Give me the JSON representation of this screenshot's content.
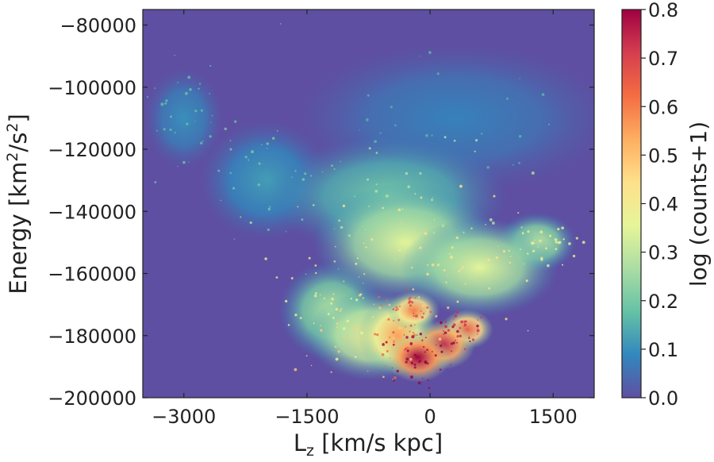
{
  "chart_data": {
    "type": "heatmap",
    "title": "",
    "xlabel_main": "L",
    "xlabel_sub": "z",
    "xlabel_rest": " [km/s kpc]",
    "ylabel_main": "Energy [km",
    "ylabel_sup": "2",
    "ylabel_mid": "/s",
    "ylabel_sup2": "2",
    "ylabel_end": "]",
    "xlim": [
      -3500,
      2000
    ],
    "ylim": [
      -200000,
      -75000
    ],
    "xticks": [
      -3000,
      -1500,
      0,
      1500
    ],
    "xtick_labels": [
      "−3000",
      "−1500",
      "0",
      "1500"
    ],
    "yticks": [
      -80000,
      -100000,
      -120000,
      -140000,
      -160000,
      -180000,
      -200000
    ],
    "ytick_labels": [
      "−80000",
      "−100000",
      "−120000",
      "−140000",
      "−160000",
      "−180000",
      "−200000"
    ],
    "colorbar": {
      "label": "log (counts+1)",
      "range": [
        0.0,
        0.8
      ],
      "ticks": [
        0.0,
        0.1,
        0.2,
        0.3,
        0.4,
        0.5,
        0.6,
        0.7,
        0.8
      ],
      "tick_labels": [
        "0.0",
        "0.1",
        "0.2",
        "0.3",
        "0.4",
        "0.5",
        "0.6",
        "0.7",
        "0.8"
      ],
      "colormap": "Spectral_r",
      "colors": [
        "#5e4fa2",
        "#3288bd",
        "#66c2a5",
        "#abdda4",
        "#e6f598",
        "#fee08b",
        "#fdae61",
        "#f46d43",
        "#d53e4f",
        "#9e0142"
      ]
    },
    "background_color": "#5e4fa2",
    "density_regions": [
      {
        "lz": -150,
        "energy": -187000,
        "level": 0.8,
        "spread_lz": 250,
        "spread_e": 5000
      },
      {
        "lz": 150,
        "energy": -183000,
        "level": 0.75,
        "spread_lz": 250,
        "spread_e": 5000
      },
      {
        "lz": 450,
        "energy": -178000,
        "level": 0.65,
        "spread_lz": 200,
        "spread_e": 4000
      },
      {
        "lz": -400,
        "energy": -180000,
        "level": 0.55,
        "spread_lz": 300,
        "spread_e": 8000
      },
      {
        "lz": -200,
        "energy": -172000,
        "level": 0.6,
        "spread_lz": 200,
        "spread_e": 4000
      },
      {
        "lz": -700,
        "energy": -180000,
        "level": 0.4,
        "spread_lz": 500,
        "spread_e": 9000
      },
      {
        "lz": -300,
        "energy": -150000,
        "level": 0.35,
        "spread_lz": 700,
        "spread_e": 12000
      },
      {
        "lz": 600,
        "energy": -158000,
        "level": 0.35,
        "spread_lz": 600,
        "spread_e": 10000
      },
      {
        "lz": 1300,
        "energy": -150000,
        "level": 0.3,
        "spread_lz": 300,
        "spread_e": 6000
      },
      {
        "lz": -1200,
        "energy": -172000,
        "level": 0.28,
        "spread_lz": 400,
        "spread_e": 10000
      },
      {
        "lz": -500,
        "energy": -135000,
        "level": 0.2,
        "spread_lz": 900,
        "spread_e": 12000
      },
      {
        "lz": -2000,
        "energy": -130000,
        "level": 0.12,
        "spread_lz": 500,
        "spread_e": 12000
      },
      {
        "lz": -3000,
        "energy": -110000,
        "level": 0.1,
        "spread_lz": 300,
        "spread_e": 10000
      },
      {
        "lz": 300,
        "energy": -110000,
        "level": 0.08,
        "spread_lz": 1200,
        "spread_e": 15000
      }
    ]
  }
}
